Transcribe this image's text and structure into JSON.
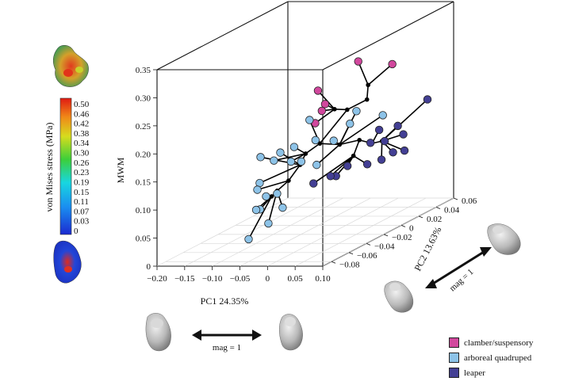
{
  "chart_data": {
    "type": "scatter",
    "projection": "3d",
    "x_label": "PC1 24.35%",
    "y_label": "PC2 13.63%",
    "z_label": "MWM",
    "x_ticks": [
      "−0.20",
      "−0.15",
      "−0.10",
      "−0.05",
      "0",
      "0.05",
      "0.10"
    ],
    "y_ticks": [
      "−0.08",
      "−0.06",
      "−0.04",
      "−0.02",
      "0",
      "0.02",
      "0.04",
      "0.06"
    ],
    "z_ticks": [
      "0",
      "0.05",
      "0.10",
      "0.15",
      "0.20",
      "0.25",
      "0.30",
      "0.35"
    ],
    "x_range": [
      -0.2,
      0.1
    ],
    "y_range": [
      -0.09,
      0.06
    ],
    "z_range": [
      0,
      0.35
    ],
    "legend": [
      {
        "name": "clamber/suspensory",
        "color": "#d1479d"
      },
      {
        "name": "arboreal quadruped",
        "color": "#8dc3e8"
      },
      {
        "name": "leaper",
        "color": "#433f94"
      }
    ],
    "points": [
      {
        "x": 0.03,
        "y": -0.005,
        "z": 0.296,
        "group": "clamber/suspensory"
      },
      {
        "x": 0.06,
        "y": 0.015,
        "z": 0.275,
        "group": "clamber/suspensory"
      },
      {
        "x": -0.035,
        "y": -0.01,
        "z": 0.248,
        "group": "clamber/suspensory"
      },
      {
        "x": -0.03,
        "y": -0.005,
        "z": 0.22,
        "group": "clamber/suspensory"
      },
      {
        "x": -0.028,
        "y": -0.01,
        "z": 0.212,
        "group": "clamber/suspensory"
      },
      {
        "x": -0.04,
        "y": -0.01,
        "z": 0.19,
        "group": "clamber/suspensory"
      },
      {
        "x": 0.005,
        "y": -0.045,
        "z": 0.224,
        "group": "arboreal quadruped"
      },
      {
        "x": 0.022,
        "y": -0.002,
        "z": 0.205,
        "group": "arboreal quadruped"
      },
      {
        "x": 0.0,
        "y": -0.035,
        "z": 0.18,
        "group": "arboreal quadruped"
      },
      {
        "x": 0.015,
        "y": -0.005,
        "z": 0.185,
        "group": "arboreal quadruped"
      },
      {
        "x": 0.035,
        "y": 0.02,
        "z": 0.18,
        "group": "arboreal quadruped"
      },
      {
        "x": -0.02,
        "y": -0.07,
        "z": 0.172,
        "group": "arboreal quadruped"
      },
      {
        "x": -0.015,
        "y": -0.05,
        "z": 0.18,
        "group": "arboreal quadruped"
      },
      {
        "x": -0.005,
        "y": -0.06,
        "z": 0.162,
        "group": "arboreal quadruped"
      },
      {
        "x": -0.04,
        "y": -0.05,
        "z": 0.17,
        "group": "arboreal quadruped"
      },
      {
        "x": -0.06,
        "y": -0.06,
        "z": 0.17,
        "group": "arboreal quadruped"
      },
      {
        "x": -0.03,
        "y": -0.08,
        "z": 0.14,
        "group": "arboreal quadruped"
      },
      {
        "x": -0.01,
        "y": -0.045,
        "z": 0.15,
        "group": "arboreal quadruped"
      },
      {
        "x": -0.05,
        "y": -0.07,
        "z": 0.12,
        "group": "arboreal quadruped"
      },
      {
        "x": -0.03,
        "y": -0.06,
        "z": 0.105,
        "group": "arboreal quadruped"
      },
      {
        "x": -0.05,
        "y": -0.06,
        "z": 0.1,
        "group": "arboreal quadruped"
      },
      {
        "x": -0.02,
        "y": -0.06,
        "z": 0.08,
        "group": "arboreal quadruped"
      },
      {
        "x": -0.045,
        "y": -0.07,
        "z": 0.085,
        "group": "arboreal quadruped"
      },
      {
        "x": -0.06,
        "y": -0.065,
        "z": 0.08,
        "group": "arboreal quadruped"
      },
      {
        "x": -0.03,
        "y": -0.07,
        "z": 0.06,
        "group": "arboreal quadruped"
      },
      {
        "x": -0.05,
        "y": -0.08,
        "z": 0.04,
        "group": "arboreal quadruped"
      },
      {
        "x": 0.01,
        "y": -0.04,
        "z": 0.14,
        "group": "arboreal quadruped"
      },
      {
        "x": 0.025,
        "y": -0.03,
        "z": 0.175,
        "group": "arboreal quadruped"
      },
      {
        "x": 0.1,
        "y": 0.03,
        "z": 0.2,
        "group": "leaper"
      },
      {
        "x": 0.06,
        "y": 0.0,
        "z": 0.17,
        "group": "leaper"
      },
      {
        "x": 0.07,
        "y": 0.015,
        "z": 0.165,
        "group": "leaper"
      },
      {
        "x": 0.07,
        "y": 0.0,
        "z": 0.15,
        "group": "leaper"
      },
      {
        "x": 0.06,
        "y": -0.01,
        "z": 0.155,
        "group": "leaper"
      },
      {
        "x": 0.08,
        "y": 0.015,
        "z": 0.15,
        "group": "leaper"
      },
      {
        "x": 0.08,
        "y": -0.01,
        "z": 0.125,
        "group": "leaper"
      },
      {
        "x": 0.07,
        "y": -0.02,
        "z": 0.125,
        "group": "leaper"
      },
      {
        "x": 0.085,
        "y": 0.0,
        "z": 0.13,
        "group": "leaper"
      },
      {
        "x": 0.09,
        "y": 0.01,
        "z": 0.125,
        "group": "leaper"
      },
      {
        "x": 0.05,
        "y": -0.03,
        "z": 0.13,
        "group": "leaper"
      },
      {
        "x": 0.045,
        "y": -0.04,
        "z": 0.12,
        "group": "leaper"
      },
      {
        "x": 0.035,
        "y": -0.04,
        "z": 0.12,
        "group": "leaper"
      },
      {
        "x": 0.02,
        "y": -0.05,
        "z": 0.115,
        "group": "leaper"
      }
    ]
  },
  "colorbar": {
    "label": "von Mises stress (MPa)",
    "ticks": [
      "0.50",
      "0.46",
      "0.42",
      "0.38",
      "0.34",
      "0.30",
      "0.26",
      "0.23",
      "0.19",
      "0.15",
      "0.11",
      "0.07",
      "0.03",
      "0"
    ]
  },
  "mag_label_pc1": "mag = 1",
  "mag_label_pc2": "mag = 1"
}
